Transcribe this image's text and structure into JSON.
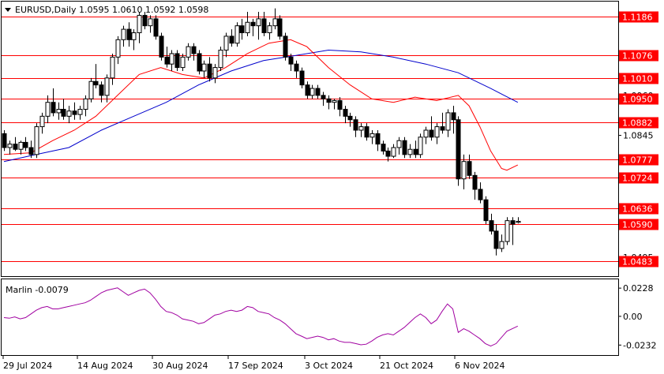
{
  "header": {
    "symbol_line": "EURUSD,Daily  1.0595 1.0610 1.0592 1.0598",
    "dropdown_icon": "triangle-down-icon"
  },
  "indicator": {
    "label": "Marlin -0.0079",
    "color": "#a000a0"
  },
  "colors": {
    "level_line": "#ff0000",
    "level_label_bg": "#ff0000",
    "level_label_text": "#ffffff",
    "candle": "#000000",
    "ma_fast": "#ff0000",
    "ma_slow": "#0000cc",
    "grid_frame": "#000000"
  },
  "chart_data": {
    "type": "candlestick",
    "symbol": "EURUSD",
    "timeframe": "Daily",
    "last_bar": {
      "open": 1.0595,
      "high": 1.061,
      "low": 1.0592,
      "close": 1.0598
    },
    "price_axis": {
      "ticks": [
        "1.1185",
        "1.0960",
        "1.0845",
        "1.0495"
      ],
      "ylim": [
        1.0445,
        1.1225
      ]
    },
    "levels": [
      1.1186,
      1.1076,
      1.101,
      1.095,
      1.0882,
      1.0777,
      1.0724,
      1.0636,
      1.059,
      1.0483
    ],
    "level_labels": [
      "1.1186",
      "1.1076",
      "1.1010",
      "1.0950",
      "1.0882",
      "1.0777",
      "1.0724",
      "1.0636",
      "1.0590",
      "1.0483"
    ],
    "x_labels": [
      "29 Jul 2024",
      "14 Aug 2024",
      "30 Aug 2024",
      "17 Sep 2024",
      "3 Oct 2024",
      "21 Oct 2024",
      "6 Nov 2024"
    ],
    "candles": [
      [
        1.085,
        1.086,
        1.08,
        1.081
      ],
      [
        1.081,
        1.083,
        1.079,
        1.082
      ],
      [
        1.082,
        1.084,
        1.08,
        1.0805
      ],
      [
        1.0805,
        1.083,
        1.079,
        1.0825
      ],
      [
        1.0825,
        1.084,
        1.08,
        1.081
      ],
      [
        1.081,
        1.083,
        1.078,
        1.079
      ],
      [
        1.079,
        1.088,
        1.078,
        1.087
      ],
      [
        1.087,
        1.091,
        1.085,
        1.09
      ],
      [
        1.09,
        1.096,
        1.088,
        1.094
      ],
      [
        1.094,
        1.098,
        1.09,
        1.091
      ],
      [
        1.091,
        1.094,
        1.089,
        1.092
      ],
      [
        1.092,
        1.095,
        1.089,
        1.09
      ],
      [
        1.09,
        1.093,
        1.088,
        1.0915
      ],
      [
        1.0915,
        1.094,
        1.089,
        1.0905
      ],
      [
        1.0905,
        1.093,
        1.089,
        1.092
      ],
      [
        1.092,
        1.096,
        1.09,
        1.095
      ],
      [
        1.095,
        1.101,
        1.094,
        1.1
      ],
      [
        1.1,
        1.105,
        1.098,
        1.099
      ],
      [
        1.099,
        1.1,
        1.094,
        1.096
      ],
      [
        1.096,
        1.102,
        1.094,
        1.101
      ],
      [
        1.101,
        1.108,
        1.099,
        1.107
      ],
      [
        1.107,
        1.113,
        1.105,
        1.112
      ],
      [
        1.112,
        1.116,
        1.11,
        1.115
      ],
      [
        1.115,
        1.117,
        1.11,
        1.112
      ],
      [
        1.112,
        1.115,
        1.109,
        1.114
      ],
      [
        1.114,
        1.12,
        1.111,
        1.119
      ],
      [
        1.119,
        1.12,
        1.115,
        1.116
      ],
      [
        1.116,
        1.119,
        1.114,
        1.118
      ],
      [
        1.118,
        1.119,
        1.112,
        1.113
      ],
      [
        1.113,
        1.114,
        1.106,
        1.107
      ],
      [
        1.107,
        1.11,
        1.104,
        1.105
      ],
      [
        1.105,
        1.109,
        1.103,
        1.108
      ],
      [
        1.108,
        1.109,
        1.103,
        1.104
      ],
      [
        1.104,
        1.108,
        1.103,
        1.107
      ],
      [
        1.107,
        1.111,
        1.106,
        1.11
      ],
      [
        1.11,
        1.111,
        1.106,
        1.108
      ],
      [
        1.108,
        1.109,
        1.102,
        1.103
      ],
      [
        1.103,
        1.106,
        1.101,
        1.105
      ],
      [
        1.105,
        1.107,
        1.1,
        1.101
      ],
      [
        1.101,
        1.105,
        1.0995,
        1.104
      ],
      [
        1.104,
        1.11,
        1.103,
        1.109
      ],
      [
        1.109,
        1.114,
        1.107,
        1.113
      ],
      [
        1.113,
        1.115,
        1.11,
        1.111
      ],
      [
        1.111,
        1.117,
        1.11,
        1.116
      ],
      [
        1.116,
        1.118,
        1.112,
        1.114
      ],
      [
        1.114,
        1.12,
        1.113,
        1.117
      ],
      [
        1.117,
        1.118,
        1.113,
        1.116
      ],
      [
        1.116,
        1.12,
        1.112,
        1.118
      ],
      [
        1.118,
        1.12,
        1.113,
        1.114
      ],
      [
        1.114,
        1.117,
        1.112,
        1.116
      ],
      [
        1.116,
        1.121,
        1.115,
        1.118
      ],
      [
        1.118,
        1.119,
        1.112,
        1.113
      ],
      [
        1.113,
        1.114,
        1.106,
        1.107
      ],
      [
        1.107,
        1.108,
        1.103,
        1.105
      ],
      [
        1.105,
        1.106,
        1.101,
        1.103
      ],
      [
        1.103,
        1.104,
        1.098,
        1.099
      ],
      [
        1.099,
        1.1,
        1.095,
        1.096
      ],
      [
        1.096,
        1.099,
        1.095,
        1.098
      ],
      [
        1.098,
        1.099,
        1.095,
        1.096
      ],
      [
        1.096,
        1.097,
        1.093,
        1.095
      ],
      [
        1.095,
        1.096,
        1.092,
        1.094
      ],
      [
        1.094,
        1.095,
        1.092,
        1.0945
      ],
      [
        1.0945,
        1.0955,
        1.09,
        1.092
      ],
      [
        1.092,
        1.093,
        1.088,
        1.09
      ],
      [
        1.09,
        1.091,
        1.087,
        1.089
      ],
      [
        1.089,
        1.09,
        1.084,
        1.086
      ],
      [
        1.086,
        1.088,
        1.084,
        1.087
      ],
      [
        1.087,
        1.088,
        1.083,
        1.084
      ],
      [
        1.084,
        1.086,
        1.082,
        1.085
      ],
      [
        1.085,
        1.086,
        1.08,
        1.082
      ],
      [
        1.082,
        1.083,
        1.079,
        1.08
      ],
      [
        1.08,
        1.081,
        1.077,
        1.0785
      ],
      [
        1.0785,
        1.082,
        1.078,
        1.081
      ],
      [
        1.081,
        1.084,
        1.079,
        1.083
      ],
      [
        1.083,
        1.084,
        1.078,
        1.079
      ],
      [
        1.079,
        1.082,
        1.078,
        1.0805
      ],
      [
        1.0805,
        1.083,
        1.078,
        1.079
      ],
      [
        1.079,
        1.085,
        1.078,
        1.084
      ],
      [
        1.084,
        1.087,
        1.082,
        1.086
      ],
      [
        1.086,
        1.09,
        1.083,
        1.084
      ],
      [
        1.084,
        1.088,
        1.082,
        1.087
      ],
      [
        1.087,
        1.091,
        1.085,
        1.086
      ],
      [
        1.086,
        1.092,
        1.084,
        1.091
      ],
      [
        1.091,
        1.093,
        1.085,
        1.089
      ],
      [
        1.089,
        1.09,
        1.07,
        1.072
      ],
      [
        1.072,
        1.079,
        1.069,
        1.077
      ],
      [
        1.077,
        1.079,
        1.072,
        1.073
      ],
      [
        1.073,
        1.074,
        1.066,
        1.069
      ],
      [
        1.069,
        1.071,
        1.065,
        1.066
      ],
      [
        1.066,
        1.067,
        1.059,
        1.06
      ],
      [
        1.06,
        1.062,
        1.056,
        1.057
      ],
      [
        1.057,
        1.059,
        1.05,
        1.052
      ],
      [
        1.052,
        1.056,
        1.051,
        1.054
      ],
      [
        1.054,
        1.061,
        1.053,
        1.06
      ],
      [
        1.06,
        1.061,
        1.053,
        1.059
      ],
      [
        1.0595,
        1.061,
        1.0592,
        1.0598
      ]
    ],
    "ma_fast": [
      [
        0,
        1.079
      ],
      [
        5,
        1.0795
      ],
      [
        9,
        1.083
      ],
      [
        13,
        1.086
      ],
      [
        17,
        1.09
      ],
      [
        21,
        1.096
      ],
      [
        25,
        1.102
      ],
      [
        29,
        1.104
      ],
      [
        33,
        1.102
      ],
      [
        37,
        1.101
      ],
      [
        41,
        1.104
      ],
      [
        45,
        1.108
      ],
      [
        49,
        1.111
      ],
      [
        53,
        1.112
      ],
      [
        56,
        1.11
      ],
      [
        60,
        1.104
      ],
      [
        64,
        1.099
      ],
      [
        68,
        1.095
      ],
      [
        72,
        1.094
      ],
      [
        76,
        1.0955
      ],
      [
        80,
        1.0945
      ],
      [
        84,
        1.096
      ],
      [
        86,
        1.093
      ],
      [
        88,
        1.087
      ],
      [
        90,
        1.08
      ],
      [
        92,
        1.075
      ],
      [
        93,
        1.0745
      ],
      [
        95,
        1.076
      ]
    ],
    "ma_slow": [
      [
        0,
        1.077
      ],
      [
        6,
        1.079
      ],
      [
        12,
        1.081
      ],
      [
        18,
        1.086
      ],
      [
        24,
        1.09
      ],
      [
        30,
        1.094
      ],
      [
        36,
        1.099
      ],
      [
        42,
        1.103
      ],
      [
        48,
        1.106
      ],
      [
        54,
        1.1075
      ],
      [
        60,
        1.109
      ],
      [
        66,
        1.1085
      ],
      [
        72,
        1.107
      ],
      [
        78,
        1.105
      ],
      [
        84,
        1.1025
      ],
      [
        90,
        1.098
      ],
      [
        95,
        1.094
      ]
    ],
    "oscillator": {
      "name": "Marlin",
      "last_value": -0.0079,
      "ticks": [
        "0.0228",
        "0.00",
        "-0.0232"
      ],
      "ylim": [
        -0.03,
        0.028
      ],
      "values": [
        -0.001,
        -0.0015,
        -0.0005,
        -0.002,
        -0.001,
        0.002,
        0.005,
        0.007,
        0.008,
        0.006,
        0.006,
        0.007,
        0.008,
        0.009,
        0.01,
        0.011,
        0.013,
        0.016,
        0.019,
        0.021,
        0.022,
        0.023,
        0.02,
        0.017,
        0.019,
        0.021,
        0.022,
        0.019,
        0.014,
        0.008,
        0.004,
        0.003,
        0.001,
        -0.002,
        -0.003,
        -0.004,
        -0.006,
        -0.005,
        -0.002,
        0.001,
        0.002,
        0.004,
        0.005,
        0.004,
        0.005,
        0.008,
        0.007,
        0.004,
        0.003,
        0.002,
        -0.001,
        -0.003,
        -0.006,
        -0.01,
        -0.014,
        -0.016,
        -0.018,
        -0.017,
        -0.016,
        -0.017,
        -0.019,
        -0.018,
        -0.02,
        -0.021,
        -0.021,
        -0.022,
        -0.023,
        -0.0225,
        -0.02,
        -0.017,
        -0.015,
        -0.014,
        -0.015,
        -0.012,
        -0.009,
        -0.005,
        -0.001,
        0.002,
        -0.001,
        -0.006,
        -0.003,
        0.004,
        0.01,
        0.006,
        -0.013,
        -0.01,
        -0.012,
        -0.015,
        -0.018,
        -0.022,
        -0.024,
        -0.022,
        -0.017,
        -0.012,
        -0.01,
        -0.0079
      ]
    }
  }
}
